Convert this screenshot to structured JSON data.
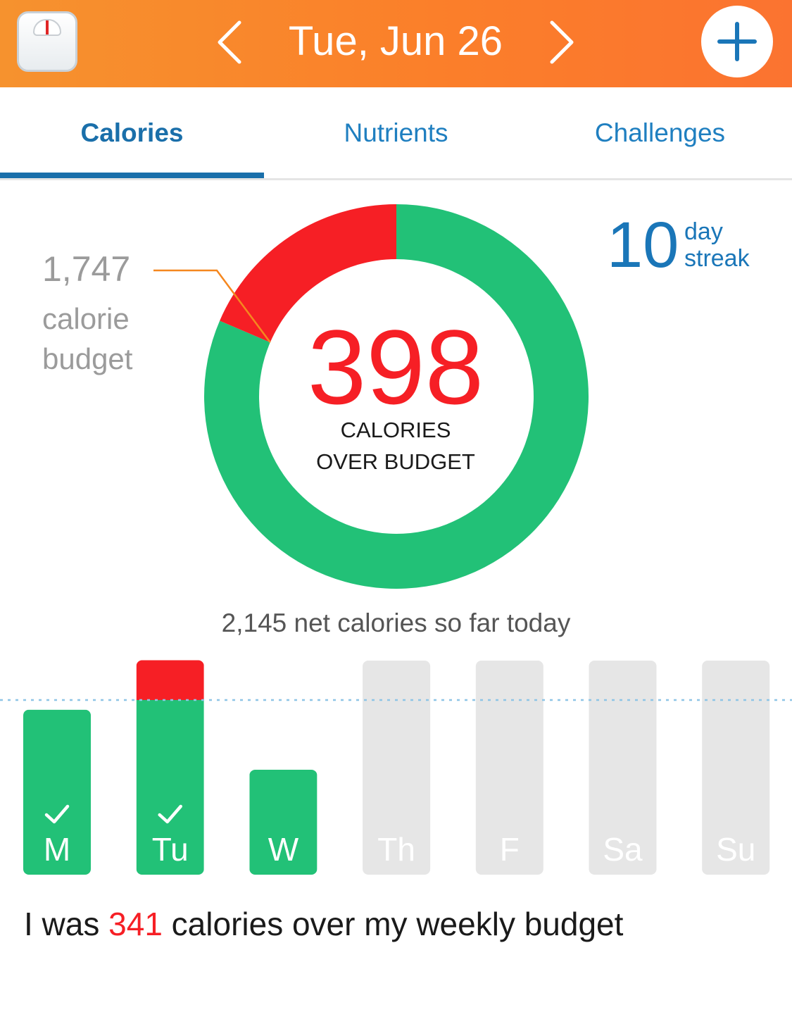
{
  "header": {
    "date": "Tue, Jun 26",
    "colors": {
      "background": "#fb8229",
      "foreground": "#ffffff"
    },
    "icons": {
      "app": "bathroom-scale-icon",
      "prev": "chevron-left-icon",
      "next": "chevron-right-icon",
      "add": "plus-icon"
    }
  },
  "tabs": [
    {
      "label": "Calories",
      "active": true
    },
    {
      "label": "Nutrients",
      "active": false
    },
    {
      "label": "Challenges",
      "active": false
    }
  ],
  "budget": {
    "value": "1,747",
    "label": "calorie budget"
  },
  "streak": {
    "value": "10",
    "unit": "day",
    "label": "streak"
  },
  "summary": {
    "over_value": "398",
    "over_caption_line1": "CALORIES",
    "over_caption_line2": "OVER BUDGET",
    "net_text": "2,145 net calories so far today"
  },
  "chart_data": {
    "type": "pie",
    "donut": [
      {
        "name": "within-budget",
        "value": 1747,
        "color": "#22c177"
      },
      {
        "name": "over-budget",
        "value": 398,
        "color": "#f61f25"
      }
    ],
    "weekly": {
      "type": "bar",
      "categories": [
        "M",
        "Tu",
        "W",
        "Th",
        "F",
        "Sa",
        "Su"
      ],
      "completed": [
        true,
        true,
        false,
        false,
        false,
        false,
        false
      ],
      "budget": 1747,
      "series": [
        {
          "values": [
            1650,
            1747,
            1050,
            0,
            0,
            0,
            0
          ],
          "color": "#22c177"
        },
        {
          "values": [
            0,
            398,
            0,
            0,
            0,
            0,
            0
          ],
          "color": "#f61f25"
        }
      ],
      "future_color": "#e6e6e6",
      "budget_line_color": "#8ec5e6"
    }
  },
  "weekly_summary": {
    "before": "I was ",
    "value": "341",
    "after": " calories over my weekly budget"
  }
}
